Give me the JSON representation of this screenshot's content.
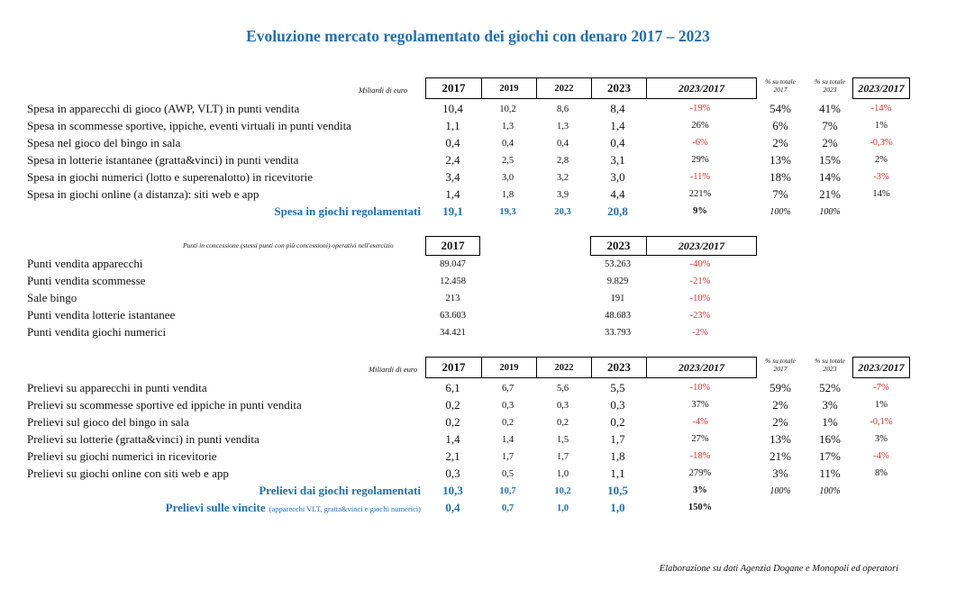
{
  "title": "Evoluzione mercato regolamentato dei giochi con denaro 2017 – 2023",
  "footer": "Elaborazione su dati Agenzia Dogane e Monopoli ed operatori",
  "s1": {
    "unit": "Miliardi di euro",
    "headers": [
      "2017",
      "2019",
      "2022",
      "2023",
      "2023/2017"
    ],
    "pct_head": [
      [
        "% su totale",
        "2017"
      ],
      [
        "% su totale",
        "2023"
      ]
    ],
    "change_head": "2023/2017",
    "rows": [
      {
        "label": "Spesa in apparecchi di gioco (AWP, VLT) in punti vendita",
        "v": [
          "10,4",
          "10,2",
          "8,6",
          "8,4",
          "-19%"
        ],
        "p": [
          "54%",
          "41%",
          "-14%"
        ]
      },
      {
        "label": "Spesa in scommesse sportive, ippiche, eventi virtuali in punti vendita",
        "v": [
          "1,1",
          "1,3",
          "1,3",
          "1,4",
          "26%"
        ],
        "p": [
          "6%",
          "7%",
          "1%"
        ]
      },
      {
        "label": "Spesa nel gioco del bingo in sala",
        "v": [
          "0,4",
          "0,4",
          "0,4",
          "0,4",
          "-6%"
        ],
        "p": [
          "2%",
          "2%",
          "-0,3%"
        ]
      },
      {
        "label": "Spesa in lotterie istantanee (gratta&vinci) in punti vendita",
        "v": [
          "2,4",
          "2,5",
          "2,8",
          "3,1",
          "29%"
        ],
        "p": [
          "13%",
          "15%",
          "2%"
        ]
      },
      {
        "label": "Spesa in giochi numerici (lotto e superenalotto) in ricevitorie",
        "v": [
          "3,4",
          "3,0",
          "3,2",
          "3,0",
          "-11%"
        ],
        "p": [
          "18%",
          "14%",
          "-3%"
        ]
      },
      {
        "label": "Spesa in giochi online (a distanza): siti web e app",
        "v": [
          "1,4",
          "1,8",
          "3,9",
          "4,4",
          "221%"
        ],
        "p": [
          "7%",
          "21%",
          "14%"
        ]
      }
    ],
    "total": {
      "label": "Spesa in giochi regolamentati",
      "v": [
        "19,1",
        "19,3",
        "20,3",
        "20,8",
        "9%"
      ],
      "p": [
        "100%",
        "100%"
      ]
    }
  },
  "s2": {
    "unit": "Punti in concessione (stessi punti con più concessioni) operativi nell'esercizio",
    "headers": [
      "2017",
      "2023",
      "2023/2017"
    ],
    "rows": [
      {
        "label": "Punti vendita apparecchi",
        "v": [
          "89.047",
          "53.263",
          "-40%"
        ]
      },
      {
        "label": "Punti vendita scommesse",
        "v": [
          "12.458",
          "9.829",
          "-21%"
        ]
      },
      {
        "label": "Sale bingo",
        "v": [
          "213",
          "191",
          "-10%"
        ]
      },
      {
        "label": "Punti vendita lotterie istantanee",
        "v": [
          "63.603",
          "48.683",
          "-23%"
        ]
      },
      {
        "label": "Punti vendita giochi numerici",
        "v": [
          "34.421",
          "33.793",
          "-2%"
        ]
      }
    ]
  },
  "s3": {
    "unit": "Miliardi di euro",
    "headers": [
      "2017",
      "2019",
      "2022",
      "2023",
      "2023/2017"
    ],
    "pct_head": [
      [
        "% su totale",
        "2017"
      ],
      [
        "% su totale",
        "2023"
      ]
    ],
    "change_head": "2023/2017",
    "rows": [
      {
        "label": "Prelievi su apparecchi in punti vendita",
        "v": [
          "6,1",
          "6,7",
          "5,6",
          "5,5",
          "-10%"
        ],
        "p": [
          "59%",
          "52%",
          "-7%"
        ]
      },
      {
        "label": "Prelievi su scommesse sportive ed ippiche in punti vendita",
        "v": [
          "0,2",
          "0,3",
          "0,3",
          "0,3",
          "37%"
        ],
        "p": [
          "2%",
          "3%",
          "1%"
        ]
      },
      {
        "label": "Prelievi sul gioco del bingo in sala",
        "v": [
          "0,2",
          "0,2",
          "0,2",
          "0,2",
          "-4%"
        ],
        "p": [
          "2%",
          "1%",
          "-0,1%"
        ]
      },
      {
        "label": "Prelievi su lotterie (gratta&vinci) in punti vendita",
        "v": [
          "1,4",
          "1,4",
          "1,5",
          "1,7",
          "27%"
        ],
        "p": [
          "13%",
          "16%",
          "3%"
        ]
      },
      {
        "label": "Prelievi su giochi numerici in ricevitorie",
        "v": [
          "2,1",
          "1,7",
          "1,7",
          "1,8",
          "-18%"
        ],
        "p": [
          "21%",
          "17%",
          "-4%"
        ]
      },
      {
        "label": "Prelievi su giochi online con siti web e app",
        "v": [
          "0,3",
          "0,5",
          "1,0",
          "1,1",
          "279%"
        ],
        "p": [
          "3%",
          "11%",
          "8%"
        ]
      }
    ],
    "total": {
      "label": "Prelievi dai giochi regolamentati",
      "v": [
        "10,3",
        "10,7",
        "10,2",
        "10,5",
        "3%"
      ],
      "p": [
        "100%",
        "100%"
      ]
    },
    "winnings": {
      "label": "Prelievi sulle vincite",
      "note": "(apparecchi VLT, gratta&vinci e giochi numerici)",
      "v": [
        "0,4",
        "0,7",
        "1,0",
        "1,0",
        "150%"
      ]
    }
  }
}
